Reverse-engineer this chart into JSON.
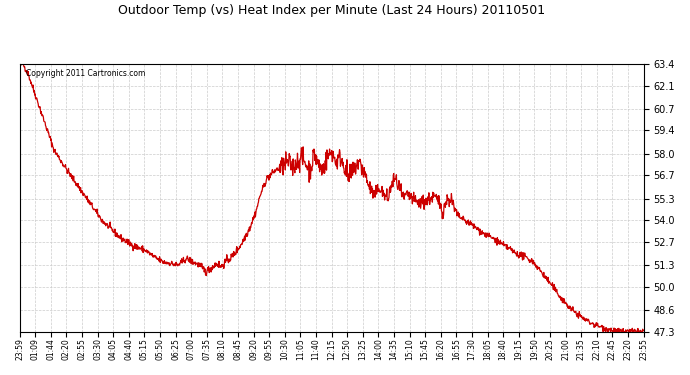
{
  "title": "Outdoor Temp (vs) Heat Index per Minute (Last 24 Hours) 20110501",
  "copyright_text": "Copyright 2011 Cartronics.com",
  "line_color": "#cc0000",
  "background_color": "#ffffff",
  "grid_color": "#cccccc",
  "y_min": 47.3,
  "y_max": 63.4,
  "y_ticks": [
    47.3,
    48.6,
    50.0,
    51.3,
    52.7,
    54.0,
    55.3,
    56.7,
    58.0,
    59.4,
    60.7,
    62.1,
    63.4
  ],
  "x_tick_labels": [
    "23:59",
    "01:09",
    "01:44",
    "02:20",
    "02:55",
    "03:30",
    "04:05",
    "04:40",
    "05:15",
    "05:50",
    "06:25",
    "07:00",
    "07:35",
    "08:10",
    "08:45",
    "09:20",
    "09:55",
    "10:30",
    "11:05",
    "11:40",
    "12:15",
    "12:50",
    "13:25",
    "14:00",
    "14:35",
    "15:10",
    "15:45",
    "16:20",
    "16:55",
    "17:30",
    "18:05",
    "18:40",
    "19:15",
    "19:50",
    "20:25",
    "21:00",
    "21:35",
    "22:10",
    "22:45",
    "23:20",
    "23:55"
  ],
  "key_points": [
    [
      0,
      63.3
    ],
    [
      8,
      63.4
    ],
    [
      20,
      62.8
    ],
    [
      50,
      60.5
    ],
    [
      80,
      58.2
    ],
    [
      110,
      57.0
    ],
    [
      150,
      55.5
    ],
    [
      190,
      54.0
    ],
    [
      230,
      53.0
    ],
    [
      260,
      52.5
    ],
    [
      290,
      52.2
    ],
    [
      310,
      51.8
    ],
    [
      330,
      51.5
    ],
    [
      350,
      51.4
    ],
    [
      365,
      51.3
    ],
    [
      385,
      51.7
    ],
    [
      400,
      51.5
    ],
    [
      415,
      51.3
    ],
    [
      430,
      50.9
    ],
    [
      440,
      51.1
    ],
    [
      455,
      51.4
    ],
    [
      465,
      51.2
    ],
    [
      475,
      51.5
    ],
    [
      490,
      51.8
    ],
    [
      510,
      52.5
    ],
    [
      530,
      53.5
    ],
    [
      545,
      54.5
    ],
    [
      555,
      55.5
    ],
    [
      570,
      56.5
    ],
    [
      590,
      57.0
    ],
    [
      605,
      57.2
    ],
    [
      620,
      57.5
    ],
    [
      630,
      57.2
    ],
    [
      640,
      57.5
    ],
    [
      650,
      57.8
    ],
    [
      660,
      57.4
    ],
    [
      670,
      57.0
    ],
    [
      675,
      57.5
    ],
    [
      680,
      58.0
    ],
    [
      690,
      57.3
    ],
    [
      700,
      57.0
    ],
    [
      710,
      57.8
    ],
    [
      720,
      58.1
    ],
    [
      730,
      57.5
    ],
    [
      740,
      57.8
    ],
    [
      750,
      57.2
    ],
    [
      760,
      56.5
    ],
    [
      770,
      57.0
    ],
    [
      780,
      57.5
    ],
    [
      790,
      57.2
    ],
    [
      800,
      56.5
    ],
    [
      810,
      55.8
    ],
    [
      820,
      55.5
    ],
    [
      830,
      56.0
    ],
    [
      840,
      55.5
    ],
    [
      850,
      55.3
    ],
    [
      860,
      56.3
    ],
    [
      865,
      56.5
    ],
    [
      875,
      56.0
    ],
    [
      885,
      55.3
    ],
    [
      895,
      55.5
    ],
    [
      905,
      55.3
    ],
    [
      920,
      55.0
    ],
    [
      940,
      55.2
    ],
    [
      955,
      55.4
    ],
    [
      960,
      55.3
    ],
    [
      970,
      55.0
    ],
    [
      975,
      54.5
    ],
    [
      985,
      55.2
    ],
    [
      995,
      55.3
    ],
    [
      1005,
      54.5
    ],
    [
      1015,
      54.2
    ],
    [
      1025,
      54.0
    ],
    [
      1040,
      53.8
    ],
    [
      1055,
      53.5
    ],
    [
      1070,
      53.2
    ],
    [
      1085,
      53.0
    ],
    [
      1100,
      52.8
    ],
    [
      1115,
      52.5
    ],
    [
      1130,
      52.3
    ],
    [
      1145,
      52.0
    ],
    [
      1165,
      51.8
    ],
    [
      1185,
      51.5
    ],
    [
      1200,
      51.0
    ],
    [
      1215,
      50.5
    ],
    [
      1230,
      50.0
    ],
    [
      1250,
      49.3
    ],
    [
      1270,
      48.7
    ],
    [
      1300,
      48.1
    ],
    [
      1320,
      47.8
    ],
    [
      1350,
      47.5
    ],
    [
      1380,
      47.3
    ],
    [
      1410,
      47.3
    ],
    [
      1439,
      47.3
    ]
  ],
  "noise_seed": 42,
  "figsize": [
    6.9,
    3.75
  ],
  "dpi": 100
}
